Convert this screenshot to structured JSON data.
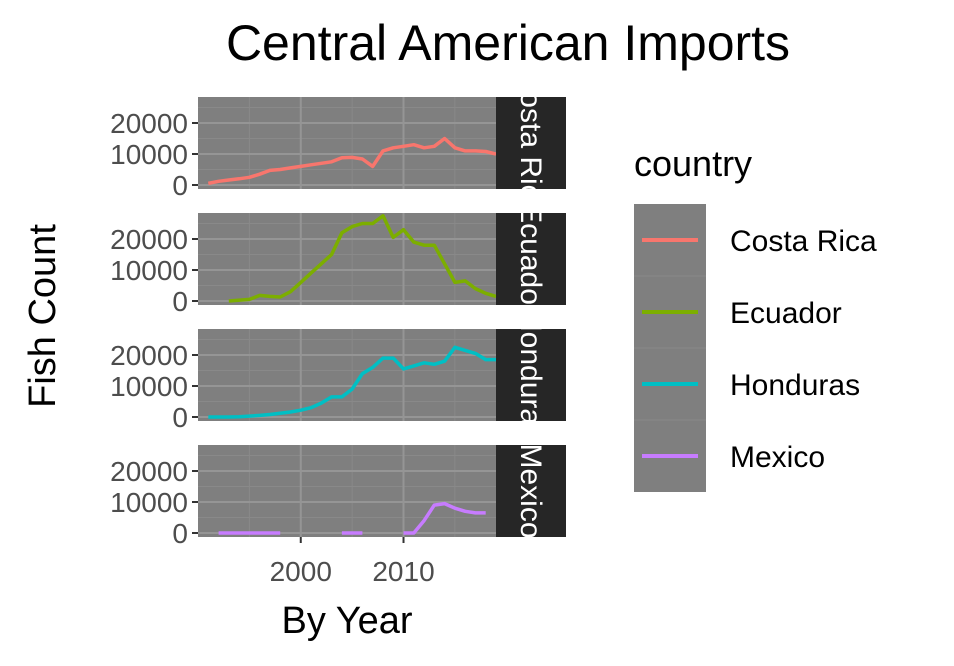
{
  "chart_data": {
    "type": "line",
    "title": "Central American Imports",
    "xlabel": "By Year",
    "ylabel": "Fish Count",
    "xlim": [
      1990,
      2019
    ],
    "ylim": [
      0,
      28000
    ],
    "x_ticks": [
      2000,
      2010
    ],
    "y_ticks": [
      0,
      10000,
      20000
    ],
    "facets": "rows by country, free-standing strip labels on right",
    "panel_background": "#7f7f7f",
    "strip_background": "#262626",
    "grid": true,
    "legend": {
      "title": "country",
      "placement": "right"
    },
    "series": [
      {
        "name": "Costa Rica",
        "color": "#F8766D",
        "segments": [
          [
            [
              1991,
              500
            ],
            [
              1992,
              1200
            ],
            [
              1993,
              1600
            ],
            [
              1994,
              2000
            ],
            [
              1995,
              2500
            ],
            [
              1996,
              3500
            ],
            [
              1997,
              4700
            ],
            [
              1998,
              5000
            ],
            [
              1999,
              5500
            ],
            [
              2000,
              6000
            ],
            [
              2001,
              6500
            ],
            [
              2002,
              7000
            ],
            [
              2003,
              7500
            ],
            [
              2004,
              8800
            ],
            [
              2005,
              8900
            ],
            [
              2006,
              8400
            ],
            [
              2007,
              6000
            ],
            [
              2008,
              11000
            ],
            [
              2009,
              12000
            ],
            [
              2010,
              12500
            ],
            [
              2011,
              13000
            ],
            [
              2012,
              12000
            ],
            [
              2013,
              12500
            ],
            [
              2014,
              15000
            ],
            [
              2015,
              12000
            ],
            [
              2016,
              11000
            ],
            [
              2017,
              11000
            ],
            [
              2018,
              10800
            ],
            [
              2019,
              10000
            ]
          ]
        ]
      },
      {
        "name": "Ecuador",
        "color": "#7CAE00",
        "segments": [
          [
            [
              1993,
              0
            ],
            [
              1995,
              500
            ],
            [
              1996,
              1800
            ],
            [
              1997,
              1500
            ],
            [
              1998,
              1300
            ],
            [
              1999,
              3000
            ],
            [
              2000,
              6000
            ],
            [
              2001,
              9000
            ],
            [
              2002,
              12000
            ],
            [
              2003,
              15000
            ],
            [
              2004,
              22000
            ],
            [
              2005,
              24000
            ],
            [
              2006,
              25000
            ],
            [
              2007,
              25000
            ],
            [
              2008,
              27500
            ],
            [
              2009,
              20500
            ],
            [
              2010,
              23000
            ],
            [
              2011,
              19000
            ],
            [
              2012,
              18000
            ],
            [
              2013,
              18000
            ],
            [
              2014,
              12000
            ],
            [
              2015,
              6000
            ],
            [
              2016,
              6500
            ],
            [
              2017,
              4000
            ],
            [
              2018,
              2500
            ],
            [
              2019,
              1500
            ]
          ]
        ]
      },
      {
        "name": "Honduras",
        "color": "#00BFC4",
        "segments": [
          [
            [
              1991,
              0
            ],
            [
              1993,
              0
            ],
            [
              1994,
              100
            ],
            [
              1996,
              500
            ],
            [
              1997,
              800
            ],
            [
              1998,
              1200
            ],
            [
              1999,
              1600
            ],
            [
              2000,
              2200
            ],
            [
              2001,
              3000
            ],
            [
              2002,
              4500
            ],
            [
              2003,
              6500
            ],
            [
              2004,
              6500
            ],
            [
              2005,
              9000
            ],
            [
              2006,
              14000
            ],
            [
              2007,
              16000
            ],
            [
              2008,
              19000
            ],
            [
              2009,
              19000
            ],
            [
              2010,
              15500
            ],
            [
              2011,
              16500
            ],
            [
              2012,
              17500
            ],
            [
              2013,
              17000
            ],
            [
              2014,
              18000
            ],
            [
              2015,
              22500
            ],
            [
              2016,
              21500
            ],
            [
              2017,
              20500
            ],
            [
              2018,
              18500
            ],
            [
              2019,
              18500
            ]
          ]
        ]
      },
      {
        "name": "Mexico",
        "color": "#C77CFF",
        "segments": [
          [
            [
              1992,
              0
            ],
            [
              1998,
              0
            ]
          ],
          [
            [
              2004,
              0
            ],
            [
              2006,
              0
            ]
          ],
          [
            [
              2010,
              0
            ],
            [
              2011,
              0
            ],
            [
              2012,
              4000
            ],
            [
              2013,
              9000
            ],
            [
              2014,
              9500
            ],
            [
              2015,
              8000
            ],
            [
              2016,
              7000
            ],
            [
              2017,
              6500
            ],
            [
              2018,
              6500
            ]
          ]
        ]
      }
    ]
  }
}
